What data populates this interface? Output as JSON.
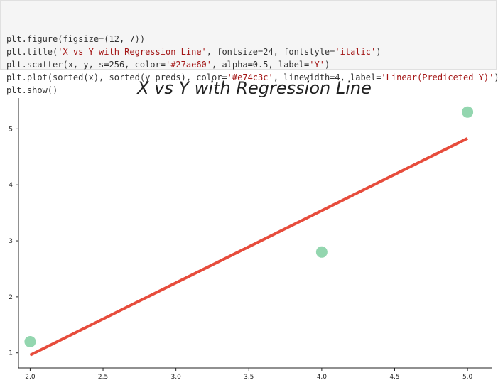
{
  "code_cell": {
    "lines": [
      [
        {
          "t": "plt.figure(figsize=(12, 7))",
          "c": ""
        }
      ],
      [
        {
          "t": "plt.title(",
          "c": ""
        },
        {
          "t": "'X vs Y with Regression Line'",
          "c": "str"
        },
        {
          "t": ", fontsize=24, fontstyle=",
          "c": ""
        },
        {
          "t": "'italic'",
          "c": "str"
        },
        {
          "t": ")",
          "c": ""
        }
      ],
      [
        {
          "t": "plt.scatter(x, y, s=256, color=",
          "c": ""
        },
        {
          "t": "'#27ae60'",
          "c": "str"
        },
        {
          "t": ", alpha=0.5, label=",
          "c": ""
        },
        {
          "t": "'Y'",
          "c": "str"
        },
        {
          "t": ")",
          "c": ""
        }
      ],
      [
        {
          "t": "plt.plot(sorted(x), sorted(y_preds), color=",
          "c": ""
        },
        {
          "t": "'#e74c3c'",
          "c": "str"
        },
        {
          "t": ", linewidth=4, label=",
          "c": ""
        },
        {
          "t": "'Linear(Prediceted Y)'",
          "c": "str"
        },
        {
          "t": ")",
          "c": ""
        }
      ],
      [
        {
          "t": "plt.show()",
          "c": ""
        }
      ]
    ]
  },
  "chart_data": {
    "type": "scatter",
    "title": "X vs Y with Regression Line",
    "title_style": "italic",
    "xlim": [
      1.92,
      5.17
    ],
    "ylim": [
      0.73,
      5.55
    ],
    "x_ticks": [
      "2.0",
      "2.5",
      "3.0",
      "3.5",
      "4.0",
      "4.5",
      "5.0"
    ],
    "y_ticks": [
      "1",
      "2",
      "3",
      "4",
      "5"
    ],
    "grid": false,
    "series": [
      {
        "type": "scatter",
        "color": "#27ae60",
        "alpha": 0.5,
        "x": [
          2.0,
          4.0,
          5.0
        ],
        "y": [
          1.2,
          2.8,
          5.3
        ]
      },
      {
        "type": "line",
        "color": "#e74c3c",
        "x": [
          2.0,
          5.0
        ],
        "y": [
          0.96,
          4.83
        ]
      }
    ]
  }
}
